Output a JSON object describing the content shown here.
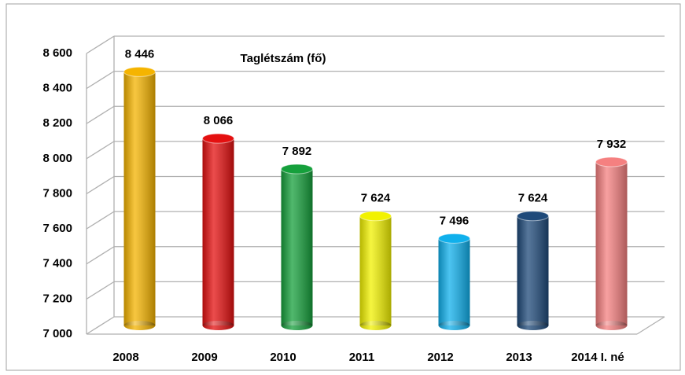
{
  "chart_data": {
    "type": "bar",
    "title": "Taglétszám (fő)",
    "categories": [
      "2008",
      "2009",
      "2010",
      "2011",
      "2012",
      "2013",
      "2014 I. né"
    ],
    "values": [
      8446,
      8066,
      7892,
      7624,
      7496,
      7624,
      7932
    ],
    "value_labels": [
      "8 446",
      "8 066",
      "7 892",
      "7 624",
      "7 496",
      "7 624",
      "7 932"
    ],
    "colors": [
      "#f5b400",
      "#e41010",
      "#16a03c",
      "#f2f200",
      "#10b0ec",
      "#1f4a7a",
      "#f58080"
    ],
    "ylim": [
      7000,
      8600
    ],
    "yticks": [
      {
        "value": 7000,
        "label": "7 000"
      },
      {
        "value": 7200,
        "label": "7 200"
      },
      {
        "value": 7400,
        "label": "7 400"
      },
      {
        "value": 7600,
        "label": "7 600"
      },
      {
        "value": 7800,
        "label": "7 800"
      },
      {
        "value": 8000,
        "label": "8 000"
      },
      {
        "value": 8200,
        "label": "8 200"
      },
      {
        "value": 8400,
        "label": "8 400"
      },
      {
        "value": 8600,
        "label": "8 600"
      }
    ],
    "grid": true
  }
}
